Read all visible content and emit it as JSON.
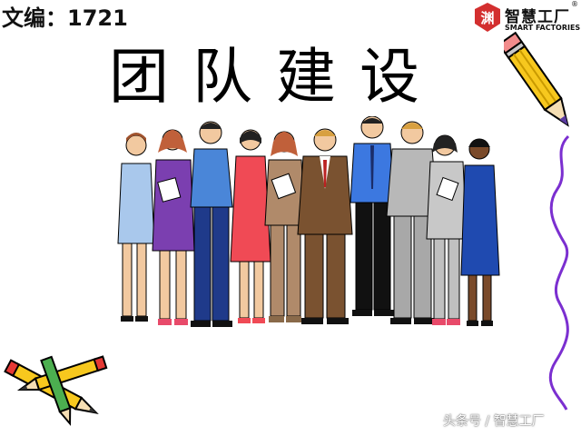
{
  "header": {
    "doc_id": "文编：1721"
  },
  "logo": {
    "mark_glyph": "渊",
    "name_cn": "智慧工厂",
    "registered": "®",
    "name_en": "SMART FACTORIES",
    "brand_color": "#d32f2f"
  },
  "main": {
    "title": "团队建设"
  },
  "illustration": {
    "icon": "business-team-illustration"
  },
  "decorations": {
    "icons": [
      "pencil-icon",
      "purple-squiggle-line",
      "crossed-pencils-icon"
    ],
    "accent_color": "#7b2fd0"
  },
  "footer": {
    "watermark": "头条号 / 智慧工厂"
  }
}
